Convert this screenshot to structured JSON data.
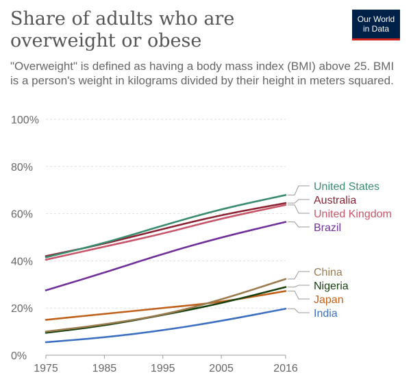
{
  "header": {
    "title": "Share of adults who are overweight or obese",
    "subtitle": "\"Overweight\" is defined as having a body mass index (BMI) above 25. BMI is a person's weight in kilograms divided by their height in meters squared.",
    "logo_line1": "Our World",
    "logo_line2": "in Data"
  },
  "chart_data": {
    "type": "line",
    "title": "Share of adults who are overweight or obese",
    "subtitle": "\"Overweight\" is defined as having a body mass index (BMI) above 25. BMI is a person's weight in kilograms divided by their height in meters squared.",
    "xlabel": "",
    "ylabel": "",
    "xlim": [
      1975,
      2016
    ],
    "ylim": [
      0,
      100
    ],
    "x_ticks": [
      1975,
      1985,
      1995,
      2005,
      2016
    ],
    "x_tick_labels": [
      "1975",
      "1985",
      "1995",
      "2005",
      "2016"
    ],
    "y_ticks": [
      0,
      20,
      40,
      60,
      80,
      100
    ],
    "y_tick_labels": [
      "0%",
      "20%",
      "40%",
      "60%",
      "80%",
      "100%"
    ],
    "grid": "horizontal dashed",
    "legend": "right, labels at line ends",
    "x": [
      1975,
      1985,
      1995,
      2005,
      2016
    ],
    "series": [
      {
        "name": "United States",
        "color": "#3a8c6f",
        "values": [
          41.5,
          47.5,
          55.0,
          62.0,
          67.9
        ]
      },
      {
        "name": "Australia",
        "color": "#8b2232",
        "values": [
          42.0,
          47.2,
          53.5,
          59.5,
          64.5
        ]
      },
      {
        "name": "United Kingdom",
        "color": "#c8566a",
        "values": [
          40.5,
          46.0,
          51.5,
          58.0,
          63.7
        ]
      },
      {
        "name": "Brazil",
        "color": "#6f3199",
        "values": [
          27.5,
          35.0,
          43.0,
          50.0,
          56.5
        ]
      },
      {
        "name": "China",
        "color": "#9a7c4f",
        "values": [
          10.0,
          13.0,
          17.0,
          23.5,
          32.3
        ]
      },
      {
        "name": "Nigeria",
        "color": "#17400f",
        "values": [
          9.5,
          12.5,
          17.0,
          22.0,
          28.9
        ]
      },
      {
        "name": "Japan",
        "color": "#c0611b",
        "values": [
          15.0,
          17.5,
          20.0,
          22.5,
          27.2
        ]
      },
      {
        "name": "India",
        "color": "#3c6fc0",
        "values": [
          5.5,
          7.5,
          10.5,
          14.5,
          19.7
        ]
      }
    ]
  }
}
